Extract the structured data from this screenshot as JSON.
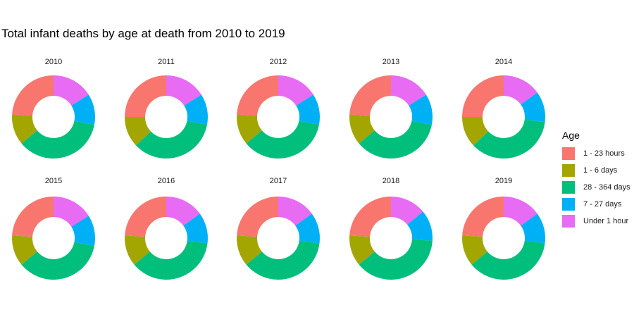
{
  "chart_data": {
    "type": "pie",
    "subtype": "donut",
    "title": "Total infant deaths by age at death from 2010 to 2019",
    "legend": {
      "title": "Age",
      "position": "right",
      "entries": [
        {
          "name": "1 - 23 hours",
          "color": "#F8766D"
        },
        {
          "name": "1 - 6 days",
          "color": "#A3A500"
        },
        {
          "name": "28 - 364 days",
          "color": "#00BF7D"
        },
        {
          "name": "7 - 27 days",
          "color": "#00B0F6"
        },
        {
          "name": "Under 1 hour",
          "color": "#E76BF3"
        }
      ]
    },
    "facets": [
      {
        "label": "2010",
        "values": {
          "Under 1 hour": 0.16,
          "7 - 27 days": 0.12,
          "28 - 364 days": 0.36,
          "1 - 6 days": 0.12,
          "1 - 23 hours": 0.24
        }
      },
      {
        "label": "2011",
        "values": {
          "Under 1 hour": 0.16,
          "7 - 27 days": 0.12,
          "28 - 364 days": 0.35,
          "1 - 6 days": 0.12,
          "1 - 23 hours": 0.25
        }
      },
      {
        "label": "2012",
        "values": {
          "Under 1 hour": 0.16,
          "7 - 27 days": 0.12,
          "28 - 364 days": 0.36,
          "1 - 6 days": 0.12,
          "1 - 23 hours": 0.24
        }
      },
      {
        "label": "2013",
        "values": {
          "Under 1 hour": 0.16,
          "7 - 27 days": 0.12,
          "28 - 364 days": 0.36,
          "1 - 6 days": 0.12,
          "1 - 23 hours": 0.24
        }
      },
      {
        "label": "2014",
        "values": {
          "Under 1 hour": 0.15,
          "7 - 27 days": 0.12,
          "28 - 364 days": 0.36,
          "1 - 6 days": 0.12,
          "1 - 23 hours": 0.25
        }
      },
      {
        "label": "2015",
        "values": {
          "Under 1 hour": 0.16,
          "7 - 27 days": 0.12,
          "28 - 364 days": 0.36,
          "1 - 6 days": 0.12,
          "1 - 23 hours": 0.24
        }
      },
      {
        "label": "2016",
        "values": {
          "Under 1 hour": 0.15,
          "7 - 27 days": 0.12,
          "28 - 364 days": 0.37,
          "1 - 6 days": 0.12,
          "1 - 23 hours": 0.24
        }
      },
      {
        "label": "2017",
        "values": {
          "Under 1 hour": 0.15,
          "7 - 27 days": 0.12,
          "28 - 364 days": 0.37,
          "1 - 6 days": 0.12,
          "1 - 23 hours": 0.24
        }
      },
      {
        "label": "2018",
        "values": {
          "Under 1 hour": 0.14,
          "7 - 27 days": 0.12,
          "28 - 364 days": 0.38,
          "1 - 6 days": 0.12,
          "1 - 23 hours": 0.24
        }
      },
      {
        "label": "2019",
        "values": {
          "Under 1 hour": 0.15,
          "7 - 27 days": 0.12,
          "28 - 364 days": 0.37,
          "1 - 6 days": 0.12,
          "1 - 23 hours": 0.24
        }
      }
    ],
    "slice_order": [
      "Under 1 hour",
      "7 - 27 days",
      "28 - 364 days",
      "1 - 6 days",
      "1 - 23 hours"
    ]
  }
}
